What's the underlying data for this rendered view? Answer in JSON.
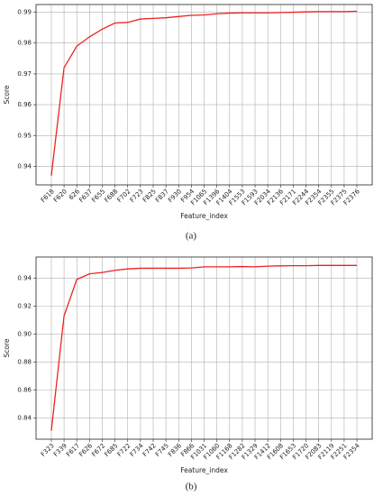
{
  "chart_data": [
    {
      "type": "line",
      "caption": "(a)",
      "xlabel": "Feature_index",
      "ylabel": "Score",
      "color": "#ee2222",
      "grid": true,
      "categories": [
        "F618",
        "F620",
        "626",
        "F637",
        "F655",
        "F688",
        "F702",
        "F723",
        "F825",
        "F837",
        "F930",
        "F954",
        "F1065",
        "F1396",
        "F1404",
        "F1553",
        "F1593",
        "F2034",
        "F2136",
        "F2171",
        "F2244",
        "F2354",
        "F2355",
        "F2375",
        "F2376"
      ],
      "values": [
        0.937,
        0.972,
        0.979,
        0.982,
        0.9845,
        0.9865,
        0.9867,
        0.9878,
        0.988,
        0.9882,
        0.9886,
        0.989,
        0.9891,
        0.9895,
        0.9897,
        0.9898,
        0.9898,
        0.9898,
        0.9899,
        0.99,
        0.9901,
        0.9902,
        0.9902,
        0.9902,
        0.9903
      ],
      "ylim": [
        0.934,
        0.9925
      ],
      "yticks": [
        0.94,
        0.95,
        0.96,
        0.97,
        0.98,
        0.99
      ]
    },
    {
      "type": "line",
      "caption": "(b)",
      "xlabel": "Feature_index",
      "ylabel": "Score",
      "color": "#ee2222",
      "grid": true,
      "categories": [
        "F323",
        "F339",
        "F617",
        "F626",
        "F672",
        "F685",
        "F722",
        "F734",
        "F742",
        "F745",
        "F836",
        "F866",
        "F1031",
        "F1060",
        "F1168",
        "F1282",
        "F1329",
        "F1412",
        "F1608",
        "F1653",
        "F1720",
        "F2083",
        "F2119",
        "F2251",
        "F2354"
      ],
      "values": [
        0.831,
        0.913,
        0.939,
        0.943,
        0.944,
        0.9455,
        0.9465,
        0.947,
        0.947,
        0.947,
        0.947,
        0.9472,
        0.948,
        0.948,
        0.948,
        0.9482,
        0.948,
        0.9485,
        0.9487,
        0.9488,
        0.9488,
        0.949,
        0.949,
        0.949,
        0.949
      ],
      "ylim": [
        0.825,
        0.955
      ],
      "yticks": [
        0.84,
        0.86,
        0.88,
        {
          "value": 0.9,
          "label": "0.90"
        },
        0.92,
        0.94
      ]
    }
  ]
}
